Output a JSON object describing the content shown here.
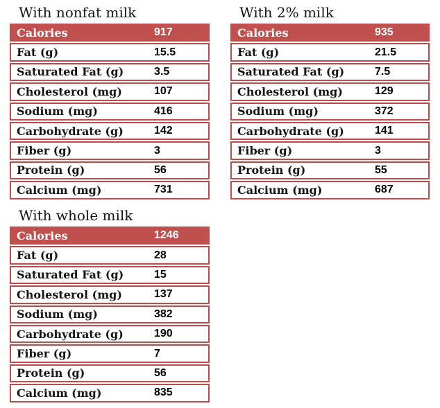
{
  "colors": {
    "header_fill": "#c0504d",
    "row_border": "#be4b48",
    "header_text": "#ffffff",
    "label_text": "#141414",
    "value_text": "#000000",
    "page_background": "#ffffff"
  },
  "chart_data": [
    {
      "type": "table",
      "title": "With nonfat milk",
      "rows": [
        {
          "label": "Calories",
          "value": "917"
        },
        {
          "label": "Fat (g)",
          "value": "15.5"
        },
        {
          "label": "Saturated Fat (g)",
          "value": "3.5"
        },
        {
          "label": "Cholesterol (mg)",
          "value": "107"
        },
        {
          "label": "Sodium (mg)",
          "value": "416"
        },
        {
          "label": "Carbohydrate (g)",
          "value": "142"
        },
        {
          "label": "Fiber (g)",
          "value": "3"
        },
        {
          "label": "Protein (g)",
          "value": "56"
        },
        {
          "label": "Calcium (mg)",
          "value": "731"
        }
      ]
    },
    {
      "type": "table",
      "title": "With 2% milk",
      "rows": [
        {
          "label": "Calories",
          "value": "935"
        },
        {
          "label": "Fat (g)",
          "value": "21.5"
        },
        {
          "label": "Saturated Fat (g)",
          "value": "7.5"
        },
        {
          "label": "Cholesterol (mg)",
          "value": "129"
        },
        {
          "label": "Sodium (mg)",
          "value": "372"
        },
        {
          "label": "Carbohydrate (g)",
          "value": "141"
        },
        {
          "label": "Fiber (g)",
          "value": "3"
        },
        {
          "label": "Protein (g)",
          "value": "55"
        },
        {
          "label": "Calcium (mg)",
          "value": "687"
        }
      ]
    },
    {
      "type": "table",
      "title": "With whole milk",
      "rows": [
        {
          "label": "Calories",
          "value": "1246"
        },
        {
          "label": "Fat (g)",
          "value": "28"
        },
        {
          "label": "Saturated Fat (g)",
          "value": "15"
        },
        {
          "label": "Cholesterol (mg)",
          "value": "137"
        },
        {
          "label": "Sodium (mg)",
          "value": "382"
        },
        {
          "label": "Carbohydrate (g)",
          "value": "190"
        },
        {
          "label": "Fiber (g)",
          "value": "7"
        },
        {
          "label": "Protein (g)",
          "value": "56"
        },
        {
          "label": "Calcium (mg)",
          "value": "835"
        }
      ]
    }
  ]
}
